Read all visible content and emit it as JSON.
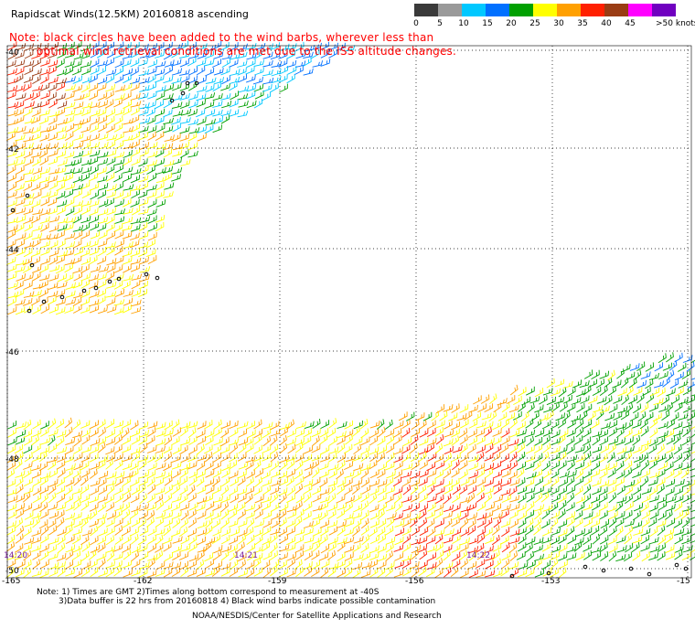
{
  "title": "Rapidscat Winds(12.5KM) 20160818 ascending",
  "note_line1": "Note: black circles have been added to the wind barbs, wherever less than",
  "note_line2": "optimal wind retrieval conditions are met due to the ISS altitude changes.",
  "colorbar": {
    "labels": [
      "0",
      "5",
      "10",
      "15",
      "20",
      "25",
      "30",
      "35",
      "40",
      "45",
      ">50 knots"
    ],
    "colors": [
      "#3a3a3a",
      "#9a9a9a",
      "#00c8ff",
      "#0070ff",
      "#00a000",
      "#ffff00",
      "#ffa000",
      "#ff2000",
      "#9a3c14",
      "#ff00ff",
      "#7000c0"
    ]
  },
  "lat_labels": [
    "-40",
    "-42",
    "-44",
    "-46",
    "-48",
    "-50"
  ],
  "lon_labels": [
    "-165",
    "-162",
    "-159",
    "-156",
    "-153",
    "-15"
  ],
  "time_labels": [
    "14:20",
    "14:21",
    "14:22"
  ],
  "footer_line1": "Note: 1) Times are GMT 2)Times along bottom correspond to measurement at -40S",
  "footer_line2": "3)Data buffer is 22 hrs from 20160818 4) Black wind barbs indicate possible contamination",
  "footer_line3": "NOAA/NESDIS/Center for Satellite Applications and Research"
}
